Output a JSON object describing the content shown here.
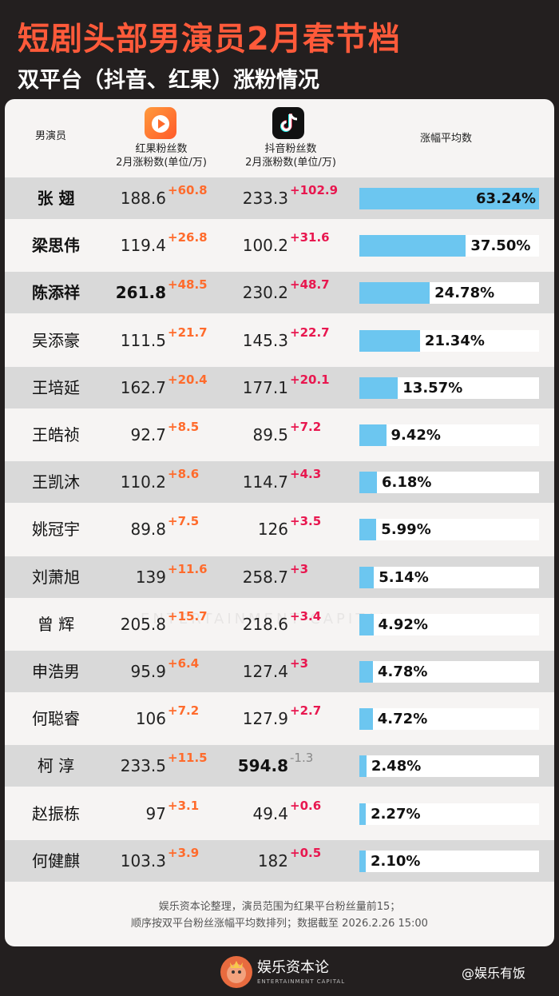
{
  "header": {
    "title": "短剧头部男演员2月春节档",
    "subtitle": "双平台（抖音、红果）涨粉情况"
  },
  "columns": {
    "actor": "男演员",
    "hongguo_line1": "红果粉丝数",
    "hongguo_line2": "2月涨粉数(单位/万)",
    "douyin_line1": "抖音粉丝数",
    "douyin_line2": "2月涨粉数(单位/万)",
    "avg": "涨幅平均数"
  },
  "colors": {
    "hongguo_inc": "#ff6b2c",
    "douyin_inc": "#e8174f",
    "bar": "#6cc6f0",
    "title": "#ff5a3a"
  },
  "chart_data": {
    "type": "table",
    "rows": [
      {
        "name": "张 翅",
        "hongguo": "188.6",
        "hongguo_inc": "+60.8",
        "douyin": "233.3",
        "douyin_inc": "+102.9",
        "avg_pct": "63.24%",
        "avg": 63.24
      },
      {
        "name": "梁思伟",
        "hongguo": "119.4",
        "hongguo_inc": "+26.8",
        "douyin": "100.2",
        "douyin_inc": "+31.6",
        "avg_pct": "37.50%",
        "avg": 37.5
      },
      {
        "name": "陈添祥",
        "hongguo": "261.8",
        "hongguo_inc": "+48.5",
        "douyin": "230.2",
        "douyin_inc": "+48.7",
        "avg_pct": "24.78%",
        "avg": 24.78
      },
      {
        "name": "吴添豪",
        "hongguo": "111.5",
        "hongguo_inc": "+21.7",
        "douyin": "145.3",
        "douyin_inc": "+22.7",
        "avg_pct": "21.34%",
        "avg": 21.34
      },
      {
        "name": "王培延",
        "hongguo": "162.7",
        "hongguo_inc": "+20.4",
        "douyin": "177.1",
        "douyin_inc": "+20.1",
        "avg_pct": "13.57%",
        "avg": 13.57
      },
      {
        "name": "王皓祯",
        "hongguo": "92.7",
        "hongguo_inc": "+8.5",
        "douyin": "89.5",
        "douyin_inc": "+7.2",
        "avg_pct": "9.42%",
        "avg": 9.42
      },
      {
        "name": "王凯沐",
        "hongguo": "110.2",
        "hongguo_inc": "+8.6",
        "douyin": "114.7",
        "douyin_inc": "+4.3",
        "avg_pct": "6.18%",
        "avg": 6.18
      },
      {
        "name": "姚冠宇",
        "hongguo": "89.8",
        "hongguo_inc": "+7.5",
        "douyin": "126",
        "douyin_inc": "+3.5",
        "avg_pct": "5.99%",
        "avg": 5.99
      },
      {
        "name": "刘萧旭",
        "hongguo": "139",
        "hongguo_inc": "+11.6",
        "douyin": "258.7",
        "douyin_inc": "+3",
        "avg_pct": "5.14%",
        "avg": 5.14
      },
      {
        "name": "曾 辉",
        "hongguo": "205.8",
        "hongguo_inc": "+15.7",
        "douyin": "218.6",
        "douyin_inc": "+3.4",
        "avg_pct": "4.92%",
        "avg": 4.92
      },
      {
        "name": "申浩男",
        "hongguo": "95.9",
        "hongguo_inc": "+6.4",
        "douyin": "127.4",
        "douyin_inc": "+3",
        "avg_pct": "4.78%",
        "avg": 4.78
      },
      {
        "name": "何聪睿",
        "hongguo": "106",
        "hongguo_inc": "+7.2",
        "douyin": "127.9",
        "douyin_inc": "+2.7",
        "avg_pct": "4.72%",
        "avg": 4.72
      },
      {
        "name": "柯 淳",
        "hongguo": "233.5",
        "hongguo_inc": "+11.5",
        "douyin": "594.8",
        "douyin_inc": "-1.3",
        "avg_pct": "2.48%",
        "avg": 2.48
      },
      {
        "name": "赵振栋",
        "hongguo": "97",
        "hongguo_inc": "+3.1",
        "douyin": "49.4",
        "douyin_inc": "+0.6",
        "avg_pct": "2.27%",
        "avg": 2.27
      },
      {
        "name": "何健麒",
        "hongguo": "103.3",
        "hongguo_inc": "+3.9",
        "douyin": "182",
        "douyin_inc": "+0.5",
        "avg_pct": "2.10%",
        "avg": 2.1
      }
    ],
    "bar_max": 63.24
  },
  "footnote": {
    "line1": "娱乐资本论整理，演员范围为红果平台粉丝量前15；",
    "line2": "顺序按双平台粉丝涨幅平均数排列；数据截至 2026.2.26 15:00"
  },
  "watermark": "ENTERTAINMENT CAPITAL",
  "footer": {
    "logo_text": "娱乐资本论",
    "logo_sub": "ENTERTAINMENT CAPITAL",
    "weibo": "@娱乐有饭"
  }
}
